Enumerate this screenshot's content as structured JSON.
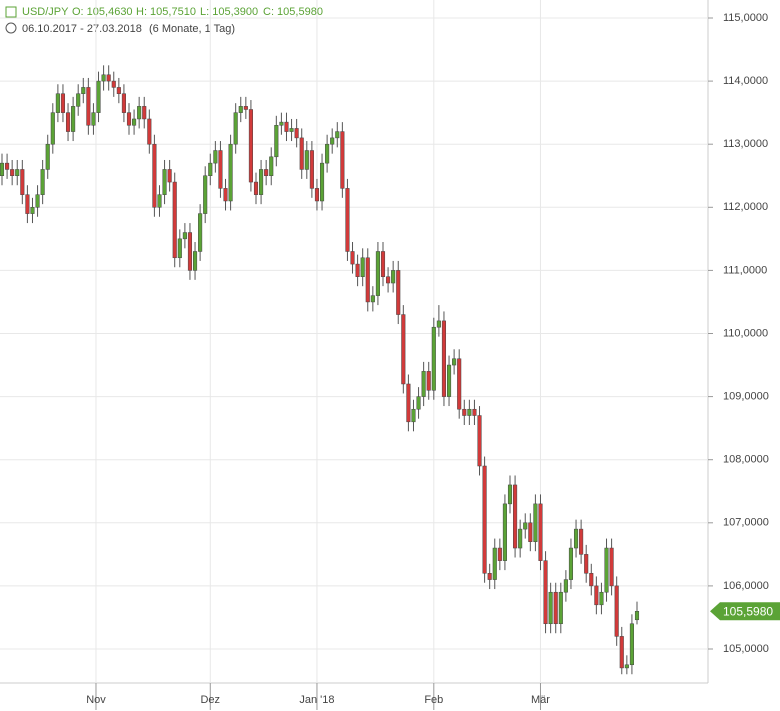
{
  "chart_data": {
    "type": "candlestick",
    "header": {
      "symbol": "USD/JPY",
      "open": "O: 105,4630",
      "high": "H: 105,7510",
      "low": "L: 105,3900",
      "close": "C: 105,5980",
      "range": "06.10.2017 - 27.03.2018",
      "period": "(6 Monate, 1 Tag)"
    },
    "last_label": "105,5980",
    "up_color": "#5ba336",
    "down_color": "#d23a3a",
    "ylim": [
      104.5,
      115.3
    ],
    "yticks": [
      {
        "value": 105,
        "label": "105,0000"
      },
      {
        "value": 106,
        "label": "106,0000"
      },
      {
        "value": 107,
        "label": "107,0000"
      },
      {
        "value": 108,
        "label": "108,0000"
      },
      {
        "value": 109,
        "label": "109,0000"
      },
      {
        "value": 110,
        "label": "110,0000"
      },
      {
        "value": 111,
        "label": "111,0000"
      },
      {
        "value": 112,
        "label": "112,0000"
      },
      {
        "value": 113,
        "label": "113,0000"
      },
      {
        "value": 114,
        "label": "114,0000"
      },
      {
        "value": 115,
        "label": "115,0000"
      }
    ],
    "xticks": [
      {
        "value": 18.5,
        "label": "Nov"
      },
      {
        "value": 41,
        "label": "Dez"
      },
      {
        "value": 62,
        "label": "Jan '18"
      },
      {
        "value": 85,
        "label": "Feb"
      },
      {
        "value": 106,
        "label": "Mär"
      }
    ],
    "grid": true,
    "candles": [
      {
        "o": 112.5,
        "h": 112.85,
        "l": 112.35,
        "c": 112.7
      },
      {
        "o": 112.7,
        "h": 112.85,
        "l": 112.45,
        "c": 112.6
      },
      {
        "o": 112.6,
        "h": 112.75,
        "l": 112.35,
        "c": 112.5
      },
      {
        "o": 112.5,
        "h": 112.75,
        "l": 112.35,
        "c": 112.6
      },
      {
        "o": 112.6,
        "h": 112.75,
        "l": 112.05,
        "c": 112.2
      },
      {
        "o": 112.2,
        "h": 112.35,
        "l": 111.75,
        "c": 111.9
      },
      {
        "o": 111.9,
        "h": 112.15,
        "l": 111.75,
        "c": 112.0
      },
      {
        "o": 112.0,
        "h": 112.35,
        "l": 111.85,
        "c": 112.2
      },
      {
        "o": 112.2,
        "h": 112.75,
        "l": 112.05,
        "c": 112.6
      },
      {
        "o": 112.6,
        "h": 113.15,
        "l": 112.45,
        "c": 113.0
      },
      {
        "o": 113.0,
        "h": 113.65,
        "l": 112.85,
        "c": 113.5
      },
      {
        "o": 113.5,
        "h": 113.95,
        "l": 113.35,
        "c": 113.8
      },
      {
        "o": 113.8,
        "h": 113.95,
        "l": 113.35,
        "c": 113.5
      },
      {
        "o": 113.5,
        "h": 113.65,
        "l": 113.05,
        "c": 113.2
      },
      {
        "o": 113.2,
        "h": 113.75,
        "l": 113.05,
        "c": 113.6
      },
      {
        "o": 113.6,
        "h": 113.95,
        "l": 113.45,
        "c": 113.8
      },
      {
        "o": 113.8,
        "h": 114.05,
        "l": 113.65,
        "c": 113.9
      },
      {
        "o": 113.9,
        "h": 114.05,
        "l": 113.15,
        "c": 113.3
      },
      {
        "o": 113.3,
        "h": 113.65,
        "l": 113.15,
        "c": 113.5
      },
      {
        "o": 113.5,
        "h": 114.15,
        "l": 113.35,
        "c": 114.0
      },
      {
        "o": 114.0,
        "h": 114.25,
        "l": 113.85,
        "c": 114.1
      },
      {
        "o": 114.1,
        "h": 114.25,
        "l": 113.85,
        "c": 114.0
      },
      {
        "o": 114.0,
        "h": 114.15,
        "l": 113.75,
        "c": 113.9
      },
      {
        "o": 113.9,
        "h": 114.05,
        "l": 113.65,
        "c": 113.8
      },
      {
        "o": 113.8,
        "h": 113.95,
        "l": 113.35,
        "c": 113.5
      },
      {
        "o": 113.5,
        "h": 113.65,
        "l": 113.15,
        "c": 113.3
      },
      {
        "o": 113.3,
        "h": 113.55,
        "l": 113.15,
        "c": 113.4
      },
      {
        "o": 113.4,
        "h": 113.75,
        "l": 113.25,
        "c": 113.6
      },
      {
        "o": 113.6,
        "h": 113.75,
        "l": 113.25,
        "c": 113.4
      },
      {
        "o": 113.4,
        "h": 113.55,
        "l": 112.85,
        "c": 113.0
      },
      {
        "o": 113.0,
        "h": 113.15,
        "l": 111.85,
        "c": 112.0
      },
      {
        "o": 112.0,
        "h": 112.35,
        "l": 111.85,
        "c": 112.2
      },
      {
        "o": 112.2,
        "h": 112.75,
        "l": 112.05,
        "c": 112.6
      },
      {
        "o": 112.6,
        "h": 112.75,
        "l": 112.25,
        "c": 112.4
      },
      {
        "o": 112.4,
        "h": 112.55,
        "l": 111.05,
        "c": 111.2
      },
      {
        "o": 111.2,
        "h": 111.65,
        "l": 111.05,
        "c": 111.5
      },
      {
        "o": 111.5,
        "h": 111.75,
        "l": 111.35,
        "c": 111.6
      },
      {
        "o": 111.6,
        "h": 111.75,
        "l": 110.85,
        "c": 111.0
      },
      {
        "o": 111.0,
        "h": 111.45,
        "l": 110.85,
        "c": 111.3
      },
      {
        "o": 111.3,
        "h": 112.05,
        "l": 111.15,
        "c": 111.9
      },
      {
        "o": 111.9,
        "h": 112.65,
        "l": 111.75,
        "c": 112.5
      },
      {
        "o": 112.5,
        "h": 112.85,
        "l": 112.35,
        "c": 112.7
      },
      {
        "o": 112.7,
        "h": 113.05,
        "l": 112.55,
        "c": 112.9
      },
      {
        "o": 112.9,
        "h": 113.05,
        "l": 112.15,
        "c": 112.3
      },
      {
        "o": 112.3,
        "h": 112.45,
        "l": 111.95,
        "c": 112.1
      },
      {
        "o": 112.1,
        "h": 113.15,
        "l": 111.95,
        "c": 113.0
      },
      {
        "o": 113.0,
        "h": 113.65,
        "l": 112.85,
        "c": 113.5
      },
      {
        "o": 113.5,
        "h": 113.75,
        "l": 113.35,
        "c": 113.6
      },
      {
        "o": 113.6,
        "h": 113.75,
        "l": 113.4,
        "c": 113.55
      },
      {
        "o": 113.55,
        "h": 113.7,
        "l": 112.25,
        "c": 112.4
      },
      {
        "o": 112.4,
        "h": 112.55,
        "l": 112.05,
        "c": 112.2
      },
      {
        "o": 112.2,
        "h": 112.75,
        "l": 112.05,
        "c": 112.6
      },
      {
        "o": 112.6,
        "h": 112.75,
        "l": 112.35,
        "c": 112.5
      },
      {
        "o": 112.5,
        "h": 112.95,
        "l": 112.35,
        "c": 112.8
      },
      {
        "o": 112.8,
        "h": 113.45,
        "l": 112.65,
        "c": 113.3
      },
      {
        "o": 113.3,
        "h": 113.5,
        "l": 113.15,
        "c": 113.35
      },
      {
        "o": 113.35,
        "h": 113.5,
        "l": 113.05,
        "c": 113.2
      },
      {
        "o": 113.2,
        "h": 113.4,
        "l": 113.05,
        "c": 113.25
      },
      {
        "o": 113.25,
        "h": 113.4,
        "l": 112.95,
        "c": 113.1
      },
      {
        "o": 113.1,
        "h": 113.25,
        "l": 112.45,
        "c": 112.6
      },
      {
        "o": 112.6,
        "h": 113.05,
        "l": 112.45,
        "c": 112.9
      },
      {
        "o": 112.9,
        "h": 113.05,
        "l": 112.15,
        "c": 112.3
      },
      {
        "o": 112.3,
        "h": 112.45,
        "l": 111.95,
        "c": 112.1
      },
      {
        "o": 112.1,
        "h": 112.85,
        "l": 111.95,
        "c": 112.7
      },
      {
        "o": 112.7,
        "h": 113.15,
        "l": 112.55,
        "c": 113.0
      },
      {
        "o": 113.0,
        "h": 113.25,
        "l": 112.85,
        "c": 113.1
      },
      {
        "o": 113.1,
        "h": 113.35,
        "l": 112.95,
        "c": 113.2
      },
      {
        "o": 113.2,
        "h": 113.35,
        "l": 112.15,
        "c": 112.3
      },
      {
        "o": 112.3,
        "h": 112.45,
        "l": 111.15,
        "c": 111.3
      },
      {
        "o": 111.3,
        "h": 111.45,
        "l": 110.95,
        "c": 111.1
      },
      {
        "o": 111.1,
        "h": 111.25,
        "l": 110.75,
        "c": 110.9
      },
      {
        "o": 110.9,
        "h": 111.35,
        "l": 110.75,
        "c": 111.2
      },
      {
        "o": 111.2,
        "h": 111.35,
        "l": 110.35,
        "c": 110.5
      },
      {
        "o": 110.5,
        "h": 110.75,
        "l": 110.35,
        "c": 110.6
      },
      {
        "o": 110.6,
        "h": 111.45,
        "l": 110.45,
        "c": 111.3
      },
      {
        "o": 111.3,
        "h": 111.45,
        "l": 110.75,
        "c": 110.9
      },
      {
        "o": 110.9,
        "h": 111.05,
        "l": 110.65,
        "c": 110.8
      },
      {
        "o": 110.8,
        "h": 111.15,
        "l": 110.65,
        "c": 111.0
      },
      {
        "o": 111.0,
        "h": 111.15,
        "l": 110.15,
        "c": 110.3
      },
      {
        "o": 110.3,
        "h": 110.45,
        "l": 109.05,
        "c": 109.2
      },
      {
        "o": 109.2,
        "h": 109.35,
        "l": 108.45,
        "c": 108.6
      },
      {
        "o": 108.6,
        "h": 108.95,
        "l": 108.45,
        "c": 108.8
      },
      {
        "o": 108.8,
        "h": 109.15,
        "l": 108.65,
        "c": 109.0
      },
      {
        "o": 109.0,
        "h": 109.55,
        "l": 108.85,
        "c": 109.4
      },
      {
        "o": 109.4,
        "h": 109.55,
        "l": 108.95,
        "c": 109.1
      },
      {
        "o": 109.1,
        "h": 110.25,
        "l": 108.95,
        "c": 110.1
      },
      {
        "o": 110.1,
        "h": 110.45,
        "l": 109.95,
        "c": 110.2
      },
      {
        "o": 110.2,
        "h": 110.35,
        "l": 108.85,
        "c": 109.0
      },
      {
        "o": 109.0,
        "h": 109.65,
        "l": 108.85,
        "c": 109.5
      },
      {
        "o": 109.5,
        "h": 109.75,
        "l": 109.35,
        "c": 109.6
      },
      {
        "o": 109.6,
        "h": 109.75,
        "l": 108.65,
        "c": 108.8
      },
      {
        "o": 108.8,
        "h": 108.95,
        "l": 108.55,
        "c": 108.7
      },
      {
        "o": 108.7,
        "h": 108.95,
        "l": 108.55,
        "c": 108.8
      },
      {
        "o": 108.8,
        "h": 108.95,
        "l": 108.55,
        "c": 108.7
      },
      {
        "o": 108.7,
        "h": 108.85,
        "l": 107.75,
        "c": 107.9
      },
      {
        "o": 107.9,
        "h": 108.05,
        "l": 106.05,
        "c": 106.2
      },
      {
        "o": 106.2,
        "h": 106.35,
        "l": 105.95,
        "c": 106.1
      },
      {
        "o": 106.1,
        "h": 106.75,
        "l": 105.95,
        "c": 106.6
      },
      {
        "o": 106.6,
        "h": 106.75,
        "l": 106.25,
        "c": 106.4
      },
      {
        "o": 106.4,
        "h": 107.45,
        "l": 106.25,
        "c": 107.3
      },
      {
        "o": 107.3,
        "h": 107.75,
        "l": 107.15,
        "c": 107.6
      },
      {
        "o": 107.6,
        "h": 107.75,
        "l": 106.45,
        "c": 106.6
      },
      {
        "o": 106.6,
        "h": 107.05,
        "l": 106.45,
        "c": 106.9
      },
      {
        "o": 106.9,
        "h": 107.15,
        "l": 106.75,
        "c": 107.0
      },
      {
        "o": 107.0,
        "h": 107.15,
        "l": 106.55,
        "c": 106.7
      },
      {
        "o": 106.7,
        "h": 107.45,
        "l": 106.55,
        "c": 107.3
      },
      {
        "o": 107.3,
        "h": 107.45,
        "l": 106.25,
        "c": 106.4
      },
      {
        "o": 106.4,
        "h": 106.55,
        "l": 105.25,
        "c": 105.4
      },
      {
        "o": 105.4,
        "h": 106.05,
        "l": 105.25,
        "c": 105.9
      },
      {
        "o": 105.9,
        "h": 106.05,
        "l": 105.25,
        "c": 105.4
      },
      {
        "o": 105.4,
        "h": 106.05,
        "l": 105.25,
        "c": 105.9
      },
      {
        "o": 105.9,
        "h": 106.25,
        "l": 105.75,
        "c": 106.1
      },
      {
        "o": 106.1,
        "h": 106.75,
        "l": 105.95,
        "c": 106.6
      },
      {
        "o": 106.6,
        "h": 107.05,
        "l": 106.45,
        "c": 106.9
      },
      {
        "o": 106.9,
        "h": 107.05,
        "l": 106.35,
        "c": 106.5
      },
      {
        "o": 106.5,
        "h": 106.65,
        "l": 106.05,
        "c": 106.2
      },
      {
        "o": 106.2,
        "h": 106.35,
        "l": 105.85,
        "c": 106.0
      },
      {
        "o": 106.0,
        "h": 106.15,
        "l": 105.55,
        "c": 105.7
      },
      {
        "o": 105.7,
        "h": 106.05,
        "l": 105.55,
        "c": 105.9
      },
      {
        "o": 105.9,
        "h": 106.75,
        "l": 105.75,
        "c": 106.6
      },
      {
        "o": 106.6,
        "h": 106.75,
        "l": 105.85,
        "c": 106.0
      },
      {
        "o": 106.0,
        "h": 106.15,
        "l": 105.05,
        "c": 105.2
      },
      {
        "o": 105.2,
        "h": 105.35,
        "l": 104.6,
        "c": 104.7
      },
      {
        "o": 104.7,
        "h": 104.9,
        "l": 104.6,
        "c": 104.75
      },
      {
        "o": 104.75,
        "h": 105.55,
        "l": 104.6,
        "c": 105.4
      },
      {
        "o": 105.463,
        "h": 105.751,
        "l": 105.39,
        "c": 105.598
      }
    ]
  }
}
